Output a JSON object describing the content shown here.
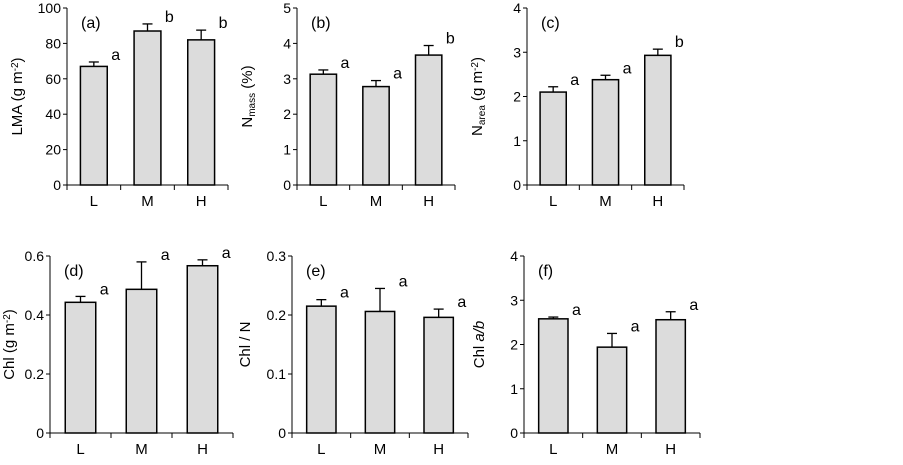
{
  "chart_data": [
    {
      "type": "bar",
      "panel": "(a)",
      "categories": [
        "L",
        "M",
        "H"
      ],
      "values": [
        67,
        87,
        82
      ],
      "errors": [
        2.5,
        4,
        5.5
      ],
      "significance": [
        "a",
        "b",
        "b"
      ],
      "ylabel": [
        {
          "t": "LMA (g m"
        },
        {
          "t": "-2",
          "s": "sup"
        },
        {
          "t": ")"
        }
      ],
      "ylim": [
        0,
        100
      ],
      "yticks": [
        "0",
        "20",
        "40",
        "60",
        "80",
        "100"
      ]
    },
    {
      "type": "bar",
      "panel": "(b)",
      "categories": [
        "L",
        "M",
        "H"
      ],
      "values": [
        3.13,
        2.78,
        3.67
      ],
      "errors": [
        0.12,
        0.17,
        0.27
      ],
      "significance": [
        "a",
        "a",
        "b"
      ],
      "ylabel": [
        {
          "t": "N"
        },
        {
          "t": "mass",
          "s": "sub"
        },
        {
          "t": " (%)"
        }
      ],
      "ylim": [
        0,
        5
      ],
      "yticks": [
        "0",
        "1",
        "2",
        "3",
        "4",
        "5"
      ]
    },
    {
      "type": "bar",
      "panel": "(c)",
      "categories": [
        "L",
        "M",
        "H"
      ],
      "values": [
        2.1,
        2.38,
        2.93
      ],
      "errors": [
        0.12,
        0.1,
        0.14
      ],
      "significance": [
        "a",
        "a",
        "b"
      ],
      "ylabel": [
        {
          "t": "N"
        },
        {
          "t": "area",
          "s": "sub"
        },
        {
          "t": " (g m"
        },
        {
          "t": "-2",
          "s": "sup"
        },
        {
          "t": ")"
        }
      ],
      "ylim": [
        0,
        4
      ],
      "yticks": [
        "0",
        "1",
        "2",
        "3",
        "4"
      ]
    },
    {
      "type": "bar",
      "panel": "(d)",
      "categories": [
        "L",
        "M",
        "H"
      ],
      "values": [
        0.443,
        0.487,
        0.567
      ],
      "errors": [
        0.02,
        0.093,
        0.02
      ],
      "significance": [
        "a",
        "a",
        "a"
      ],
      "ylabel": [
        {
          "t": "Chl (g m"
        },
        {
          "t": "-2",
          "s": "sup"
        },
        {
          "t": ")"
        }
      ],
      "ylim": [
        0,
        0.6
      ],
      "yticks": [
        "0",
        "0.2",
        "0.4",
        "0.6"
      ]
    },
    {
      "type": "bar",
      "panel": "(e)",
      "categories": [
        "L",
        "M",
        "H"
      ],
      "values": [
        0.215,
        0.206,
        0.196
      ],
      "errors": [
        0.011,
        0.039,
        0.014
      ],
      "significance": [
        "a",
        "a",
        "a"
      ],
      "ylabel": [
        {
          "t": "Chl / N"
        }
      ],
      "ylim": [
        0,
        0.3
      ],
      "yticks": [
        "0",
        "0.1",
        "0.2",
        "0.3"
      ]
    },
    {
      "type": "bar",
      "panel": "(f)",
      "categories": [
        "L",
        "M",
        "H"
      ],
      "values": [
        2.58,
        1.94,
        2.56
      ],
      "errors": [
        0.04,
        0.31,
        0.18
      ],
      "significance": [
        "a",
        "a",
        "a"
      ],
      "ylabel": [
        {
          "t": "Chl "
        },
        {
          "t": "a/b",
          "s": "italic"
        }
      ],
      "ylim": [
        0,
        4
      ],
      "yticks": [
        "0",
        "1",
        "2",
        "3",
        "4"
      ]
    }
  ]
}
